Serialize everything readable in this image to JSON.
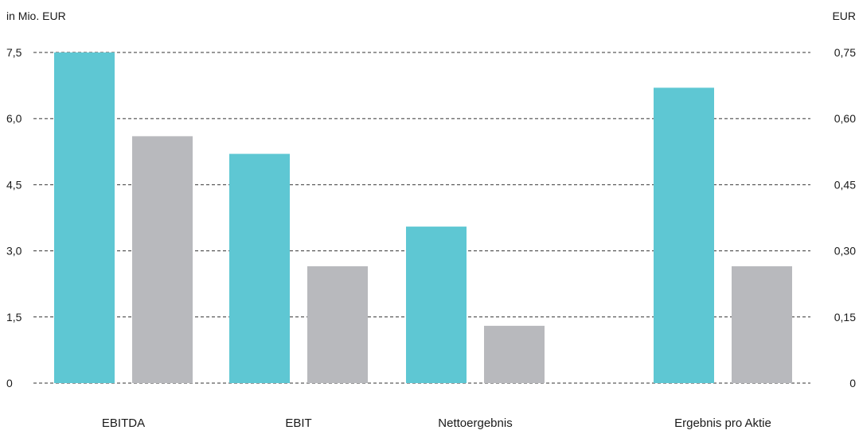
{
  "chart_data": {
    "type": "bar",
    "left_unit_label": "in Mio. EUR",
    "right_unit_label": "EUR",
    "left_axis": {
      "ylim": [
        0,
        7.5
      ],
      "ticks": [
        "0",
        "1,5",
        "3,0",
        "4,5",
        "6,0",
        "7,5"
      ]
    },
    "right_axis": {
      "ylim": [
        0,
        0.75
      ],
      "ticks": [
        "0",
        "0,15",
        "0,30",
        "0,45",
        "0,60",
        "0,75"
      ]
    },
    "grid": "dashed-horizontal",
    "categories": [
      "EBITDA",
      "EBIT",
      "Nettoergebnis",
      "Ergebnis pro Aktie"
    ],
    "category_axis": [
      "left",
      "left",
      "left",
      "right"
    ],
    "series": [
      {
        "color": "#5ec7d3",
        "values": [
          7.5,
          5.2,
          3.55,
          0.67
        ]
      },
      {
        "color": "#b8b9bd",
        "values": [
          5.6,
          2.65,
          1.3,
          0.265
        ]
      }
    ]
  }
}
